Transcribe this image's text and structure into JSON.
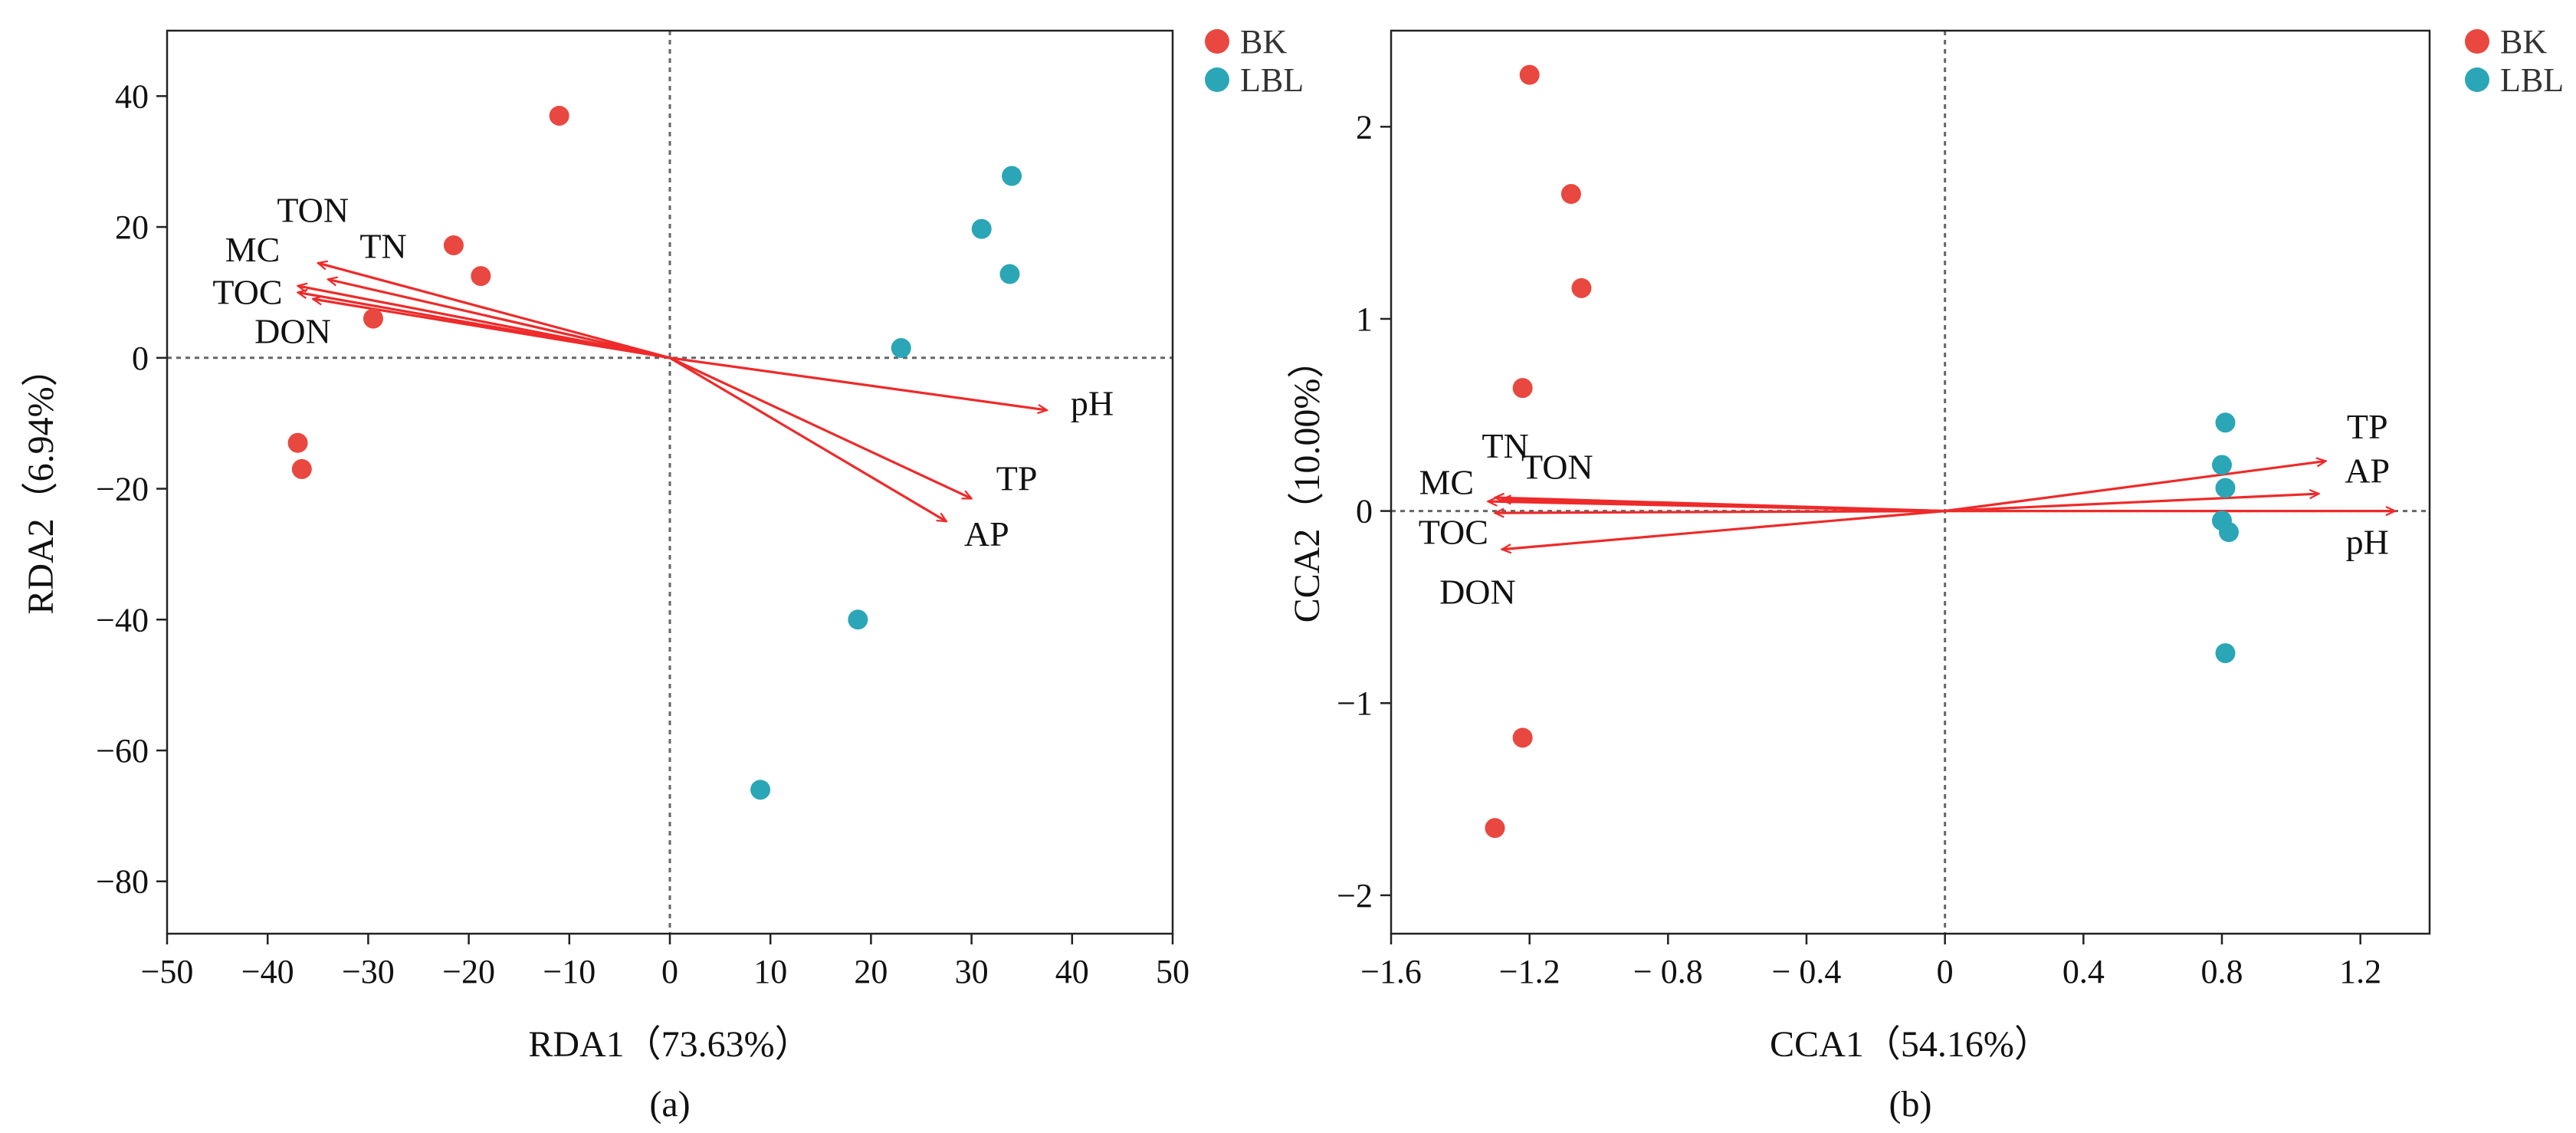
{
  "colors": {
    "BK": "#e8483f",
    "LBL": "#2aa6b6",
    "arrow": "#ee2a2a",
    "axis": "#222222",
    "ref": "#666666"
  },
  "chart_data": [
    {
      "type": "scatter",
      "subtype": "RDA biplot",
      "panel_label": "(a)",
      "xlabel": "RDA1（73.63%）",
      "ylabel": "RDA2（6.94%）",
      "xlim": [
        -50,
        50
      ],
      "ylim": [
        -88,
        50
      ],
      "xticks": [
        -50,
        -40,
        -30,
        -20,
        -10,
        0,
        10,
        20,
        30,
        40,
        50
      ],
      "xtick_labels": [
        "−50",
        "−40",
        "−30",
        "−20",
        "−10",
        "0",
        "10",
        "20",
        "30",
        "40",
        "50"
      ],
      "yticks": [
        -80,
        -60,
        -40,
        -20,
        0,
        20,
        40
      ],
      "ytick_labels": [
        "−80",
        "−60",
        "−40",
        "−20",
        "0",
        "20",
        "40"
      ],
      "legend": [
        {
          "name": "BK",
          "color": "#e8483f"
        },
        {
          "name": "LBL",
          "color": "#2aa6b6"
        }
      ],
      "legend_position": "top-right outside",
      "series": [
        {
          "name": "BK",
          "points": [
            [
              -11,
              37
            ],
            [
              -21.5,
              17.2
            ],
            [
              -18.8,
              12.5
            ],
            [
              -29.5,
              6
            ],
            [
              -37,
              -13
            ],
            [
              -36.6,
              -17
            ]
          ]
        },
        {
          "name": "LBL",
          "points": [
            [
              34,
              27.8
            ],
            [
              31,
              19.7
            ],
            [
              33.8,
              12.8
            ],
            [
              23,
              1.5
            ],
            [
              18.7,
              -40
            ],
            [
              9,
              -66
            ]
          ]
        }
      ],
      "vectors": [
        {
          "name": "TON",
          "x": -35,
          "y": 14.5,
          "lx": -35.5,
          "ly": 22
        },
        {
          "name": "TN",
          "x": -34,
          "y": 12,
          "lx": -28.5,
          "ly": 16.5
        },
        {
          "name": "MC",
          "x": -37,
          "y": 11,
          "lx": -41.5,
          "ly": 16
        },
        {
          "name": "TOC",
          "x": -37,
          "y": 10,
          "lx": -42,
          "ly": 9.5
        },
        {
          "name": "DON",
          "x": -35.5,
          "y": 9,
          "lx": -37.5,
          "ly": 3.5
        },
        {
          "name": "pH",
          "x": 37.5,
          "y": -8,
          "lx": 42,
          "ly": -7.5
        },
        {
          "name": "TP",
          "x": 30,
          "y": -21.5,
          "lx": 34.5,
          "ly": -19
        },
        {
          "name": "AP",
          "x": 27.5,
          "y": -25,
          "lx": 31.5,
          "ly": -27.5
        }
      ]
    },
    {
      "type": "scatter",
      "subtype": "CCA biplot",
      "panel_label": "(b)",
      "xlabel": "CCA1（54.16%）",
      "ylabel": "CCA2（10.00%）",
      "xlim": [
        -1.6,
        1.4
      ],
      "ylim": [
        -2.2,
        2.5
      ],
      "xticks": [
        -1.6,
        -1.2,
        -0.8,
        -0.4,
        0,
        0.4,
        0.8,
        1.2
      ],
      "xtick_labels": [
        "−1.6",
        "−1.2",
        "− 0.8",
        "− 0.4",
        "0",
        "0.4",
        "0.8",
        "1.2"
      ],
      "yticks": [
        -2,
        -1,
        0,
        1,
        2
      ],
      "ytick_labels": [
        "−2",
        "−1",
        "0",
        "1",
        "2"
      ],
      "legend": [
        {
          "name": "BK",
          "color": "#e8483f"
        },
        {
          "name": "LBL",
          "color": "#2aa6b6"
        }
      ],
      "legend_position": "top-right",
      "series": [
        {
          "name": "BK",
          "points": [
            [
              -1.2,
              2.27
            ],
            [
              -1.08,
              1.65
            ],
            [
              -1.05,
              1.16
            ],
            [
              -1.22,
              0.64
            ],
            [
              -1.22,
              -1.18
            ],
            [
              -1.3,
              -1.65
            ]
          ]
        },
        {
          "name": "LBL",
          "points": [
            [
              0.81,
              0.46
            ],
            [
              0.8,
              0.24
            ],
            [
              0.81,
              0.12
            ],
            [
              0.8,
              -0.05
            ],
            [
              0.82,
              -0.11
            ],
            [
              0.81,
              -0.74
            ]
          ]
        }
      ],
      "vectors": [
        {
          "name": "TN",
          "x": -1.3,
          "y": 0.07,
          "lx": -1.27,
          "ly": 0.32
        },
        {
          "name": "TON",
          "x": -1.28,
          "y": 0.06,
          "lx": -1.12,
          "ly": 0.21
        },
        {
          "name": "MC",
          "x": -1.32,
          "y": 0.05,
          "lx": -1.44,
          "ly": 0.13
        },
        {
          "name": "TOC",
          "x": -1.3,
          "y": -0.01,
          "lx": -1.42,
          "ly": -0.13
        },
        {
          "name": "DON",
          "x": -1.28,
          "y": -0.2,
          "lx": -1.35,
          "ly": -0.44
        },
        {
          "name": "TP",
          "x": 1.1,
          "y": 0.26,
          "lx": 1.22,
          "ly": 0.42
        },
        {
          "name": "AP",
          "x": 1.08,
          "y": 0.09,
          "lx": 1.22,
          "ly": 0.19
        },
        {
          "name": "pH",
          "x": 1.3,
          "y": 0.0,
          "lx": 1.22,
          "ly": -0.18
        }
      ]
    }
  ]
}
